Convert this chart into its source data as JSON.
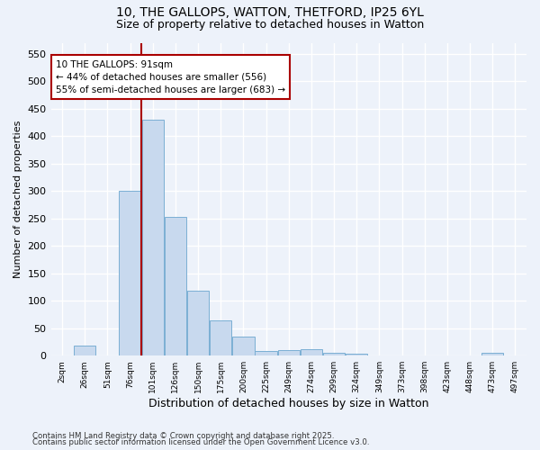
{
  "title_line1": "10, THE GALLOPS, WATTON, THETFORD, IP25 6YL",
  "title_line2": "Size of property relative to detached houses in Watton",
  "xlabel": "Distribution of detached houses by size in Watton",
  "ylabel": "Number of detached properties",
  "bar_color": "#c8d9ee",
  "bar_edge_color": "#7bafd4",
  "categories": [
    "2sqm",
    "26sqm",
    "51sqm",
    "76sqm",
    "101sqm",
    "126sqm",
    "150sqm",
    "175sqm",
    "200sqm",
    "225sqm",
    "249sqm",
    "274sqm",
    "299sqm",
    "324sqm",
    "349sqm",
    "373sqm",
    "398sqm",
    "423sqm",
    "448sqm",
    "473sqm",
    "497sqm"
  ],
  "values": [
    0,
    18,
    0,
    300,
    430,
    253,
    119,
    65,
    35,
    8,
    10,
    12,
    5,
    3,
    0,
    0,
    0,
    0,
    0,
    5,
    0
  ],
  "red_line_x": 4,
  "red_line_color": "#aa0000",
  "annotation_text_line1": "10 THE GALLOPS: 91sqm",
  "annotation_text_line2": "← 44% of detached houses are smaller (556)",
  "annotation_text_line3": "55% of semi-detached houses are larger (683) →",
  "annotation_box_color": "#ffffff",
  "annotation_box_edge": "#aa0000",
  "ylim": [
    0,
    570
  ],
  "yticks": [
    0,
    50,
    100,
    150,
    200,
    250,
    300,
    350,
    400,
    450,
    500,
    550
  ],
  "background_color": "#edf2fa",
  "grid_color": "#ffffff",
  "footnote_line1": "Contains HM Land Registry data © Crown copyright and database right 2025.",
  "footnote_line2": "Contains public sector information licensed under the Open Government Licence v3.0."
}
